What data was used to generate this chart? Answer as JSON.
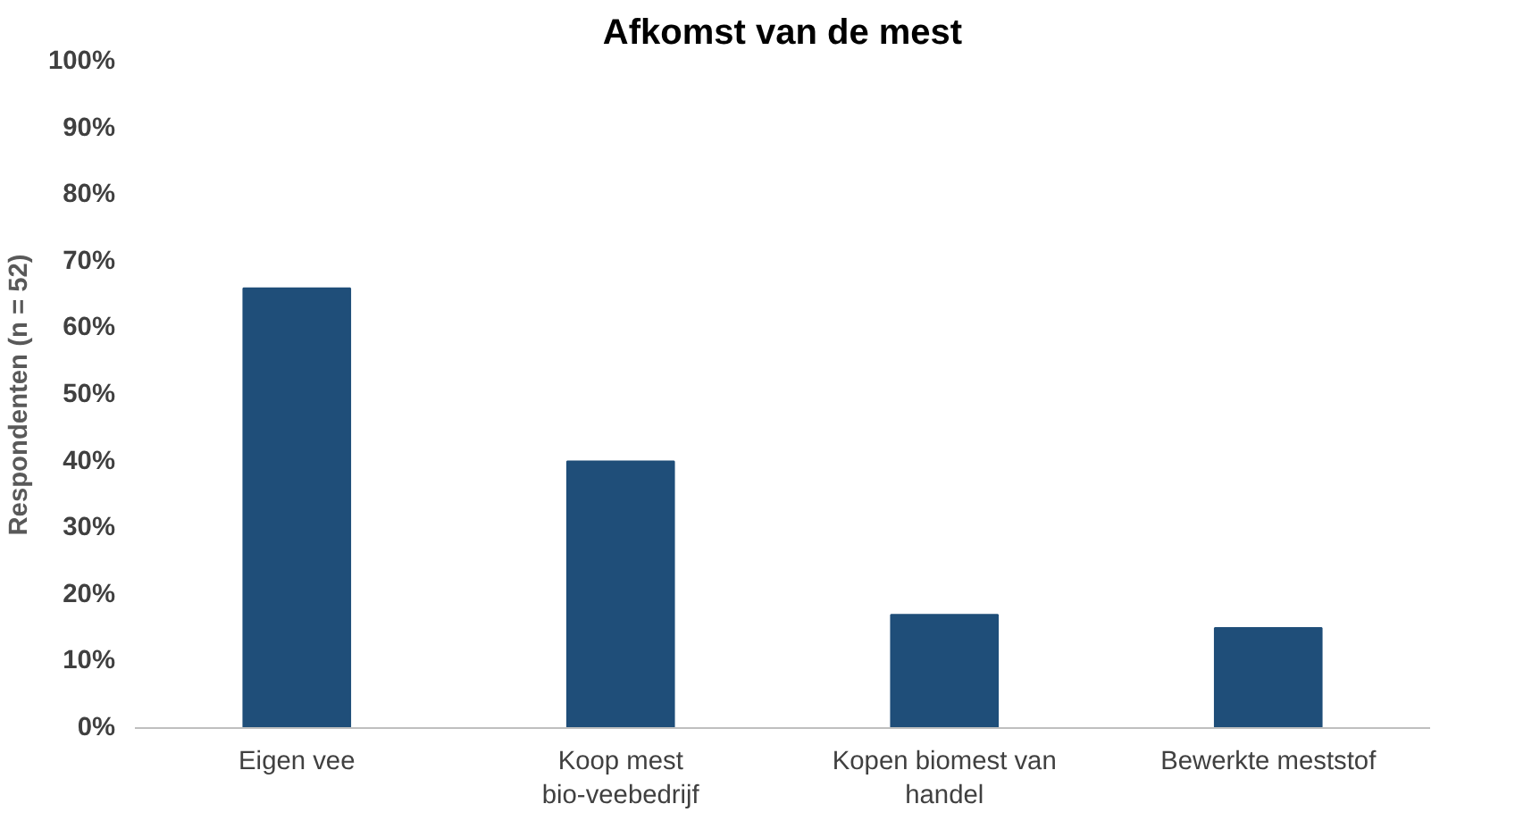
{
  "chart_data": {
    "type": "bar",
    "title": "Afkomst van de mest",
    "ylabel": "Respondenten (n = 52)",
    "categories": [
      "Eigen vee",
      "Koop mest bio-veebedrijf",
      "Kopen biomest van handel",
      "Bewerkte meststof"
    ],
    "values": [
      66,
      40,
      17,
      15
    ],
    "color": "#1f4e79",
    "ylim": [
      0,
      100
    ],
    "yticks": [
      {
        "value": 0,
        "label": "0%"
      },
      {
        "value": 10,
        "label": "10%"
      },
      {
        "value": 20,
        "label": "20%"
      },
      {
        "value": 30,
        "label": "30%"
      },
      {
        "value": 40,
        "label": "40%"
      },
      {
        "value": 50,
        "label": "50%"
      },
      {
        "value": 60,
        "label": "60%"
      },
      {
        "value": 70,
        "label": "70%"
      },
      {
        "value": 80,
        "label": "80%"
      },
      {
        "value": 90,
        "label": "90%"
      },
      {
        "value": 100,
        "label": "100%"
      }
    ],
    "grid": false
  }
}
